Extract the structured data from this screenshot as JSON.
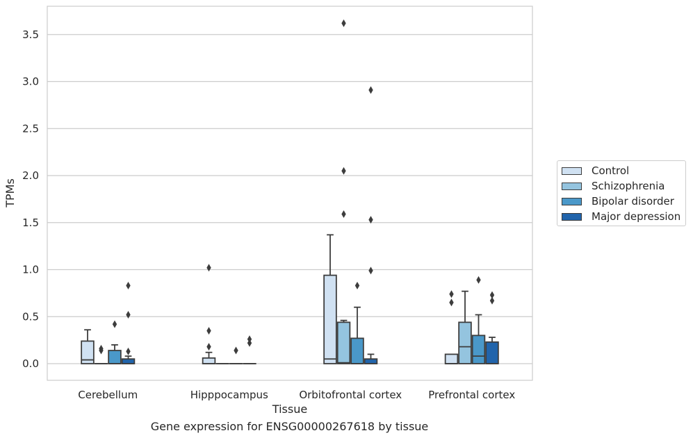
{
  "caption": "Gene expression for ENSG00000267618 by tissue",
  "chart_data": {
    "type": "box",
    "xlabel": "Tissue",
    "ylabel": "TPMs",
    "ylim": [
      -0.18,
      3.78
    ],
    "yticks": [
      0.0,
      0.5,
      1.0,
      1.5,
      2.0,
      2.5,
      3.0,
      3.5
    ],
    "ytick_labels": [
      "0.0",
      "0.5",
      "1.0",
      "1.5",
      "2.0",
      "2.5",
      "3.0",
      "3.5"
    ],
    "grid": "horizontal",
    "legend_position": "right",
    "categories": [
      "Cerebellum",
      "Hipppocampus",
      "Orbitofrontal cortex",
      "Prefrontal cortex"
    ],
    "series": [
      {
        "name": "Control",
        "color": "#d0e1f2",
        "boxes": [
          {
            "whisker_low": 0.0,
            "q1": 0.0,
            "median": 0.04,
            "q3": 0.24,
            "whisker_high": 0.36,
            "outliers": []
          },
          {
            "whisker_low": 0.0,
            "q1": 0.0,
            "median": 0.0,
            "q3": 0.06,
            "whisker_high": 0.12,
            "outliers": [
              0.18,
              0.35,
              1.02
            ]
          },
          {
            "whisker_low": 0.0,
            "q1": 0.0,
            "median": 0.05,
            "q3": 0.94,
            "whisker_high": 1.37,
            "outliers": []
          },
          {
            "whisker_low": 0.0,
            "q1": 0.0,
            "median": 0.0,
            "q3": 0.1,
            "whisker_high": 0.1,
            "outliers": [
              0.65,
              0.74
            ]
          }
        ]
      },
      {
        "name": "Schizophrenia",
        "color": "#94c4df",
        "boxes": [
          {
            "whisker_low": 0.0,
            "q1": 0.0,
            "median": 0.0,
            "q3": 0.0,
            "whisker_high": 0.0,
            "outliers": [
              0.14,
              0.16
            ]
          },
          {
            "whisker_low": 0.0,
            "q1": 0.0,
            "median": 0.0,
            "q3": 0.0,
            "whisker_high": 0.0,
            "outliers": []
          },
          {
            "whisker_low": 0.0,
            "q1": 0.0,
            "median": 0.01,
            "q3": 0.44,
            "whisker_high": 0.46,
            "outliers": [
              1.59,
              2.05,
              3.62
            ]
          },
          {
            "whisker_low": 0.0,
            "q1": 0.0,
            "median": 0.18,
            "q3": 0.44,
            "whisker_high": 0.77,
            "outliers": []
          }
        ]
      },
      {
        "name": "Bipolar disorder",
        "color": "#4a98c9",
        "boxes": [
          {
            "whisker_low": 0.0,
            "q1": 0.0,
            "median": 0.0,
            "q3": 0.14,
            "whisker_high": 0.2,
            "outliers": [
              0.42
            ]
          },
          {
            "whisker_low": 0.0,
            "q1": 0.0,
            "median": 0.0,
            "q3": 0.0,
            "whisker_high": 0.0,
            "outliers": [
              0.14
            ]
          },
          {
            "whisker_low": 0.0,
            "q1": 0.0,
            "median": 0.0,
            "q3": 0.27,
            "whisker_high": 0.6,
            "outliers": [
              0.83
            ]
          },
          {
            "whisker_low": 0.0,
            "q1": 0.0,
            "median": 0.08,
            "q3": 0.3,
            "whisker_high": 0.52,
            "outliers": [
              0.89
            ]
          }
        ]
      },
      {
        "name": "Major depression",
        "color": "#2164ab",
        "boxes": [
          {
            "whisker_low": 0.0,
            "q1": 0.0,
            "median": 0.0,
            "q3": 0.05,
            "whisker_high": 0.08,
            "outliers": [
              0.13,
              0.52,
              0.83
            ]
          },
          {
            "whisker_low": 0.0,
            "q1": 0.0,
            "median": 0.0,
            "q3": 0.0,
            "whisker_high": 0.0,
            "outliers": [
              0.22,
              0.26
            ]
          },
          {
            "whisker_low": 0.0,
            "q1": 0.0,
            "median": 0.0,
            "q3": 0.05,
            "whisker_high": 0.1,
            "outliers": [
              0.99,
              1.53,
              2.91
            ]
          },
          {
            "whisker_low": 0.0,
            "q1": 0.0,
            "median": 0.0,
            "q3": 0.23,
            "whisker_high": 0.28,
            "outliers": [
              0.67,
              0.73
            ]
          }
        ]
      }
    ]
  }
}
